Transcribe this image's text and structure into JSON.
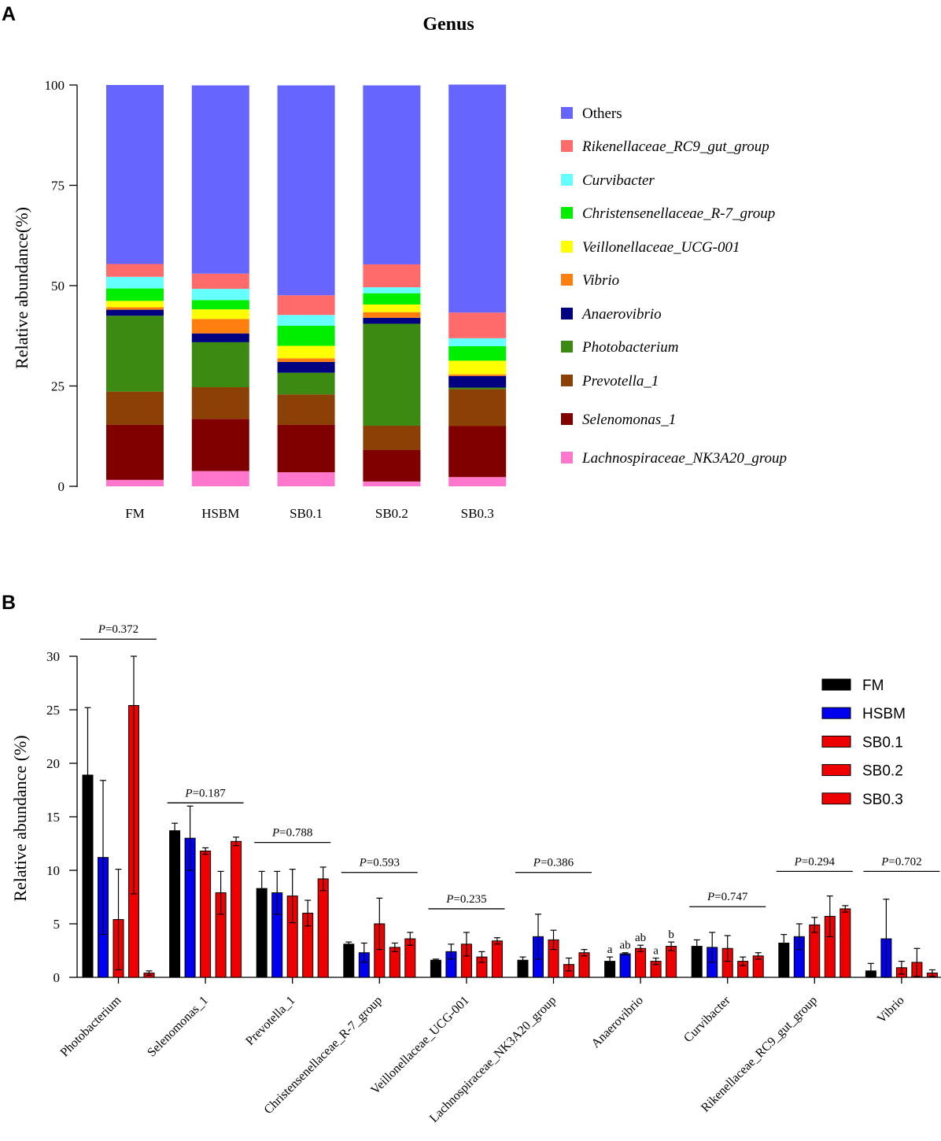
{
  "panel_labels": {
    "a": "A",
    "b": "B"
  },
  "chart_data": [
    {
      "type": "bar",
      "stacked": true,
      "title": "Genus",
      "ylabel": "Relative abundance(%)",
      "xlabel": "",
      "ylim": [
        0,
        100
      ],
      "yticks": [
        "0",
        "25",
        "50",
        "75",
        "100"
      ],
      "categories": [
        "FM",
        "HSBM",
        "SB0.1",
        "SB0.2",
        "SB0.3"
      ],
      "series": [
        {
          "name": "Lachnospiraceae_NK3A20_group",
          "color": "#ff77cc",
          "values": [
            1.6,
            3.8,
            3.5,
            1.2,
            2.3
          ]
        },
        {
          "name": "Selenomonas_1",
          "color": "#800000",
          "values": [
            13.7,
            13.0,
            11.8,
            7.9,
            12.7
          ]
        },
        {
          "name": "Prevotella_1",
          "color": "#8b4106",
          "values": [
            8.3,
            7.9,
            7.6,
            6.0,
            9.2
          ]
        },
        {
          "name": "Photobacterium",
          "color": "#3d8a12",
          "values": [
            18.9,
            11.2,
            5.4,
            25.4,
            0.4
          ]
        },
        {
          "name": "Anaerovibrio",
          "color": "#000080",
          "values": [
            1.5,
            2.2,
            2.7,
            1.5,
            2.9
          ]
        },
        {
          "name": "Vibrio",
          "color": "#ff7f0e",
          "values": [
            0.6,
            3.6,
            0.9,
            1.4,
            0.4
          ]
        },
        {
          "name": "Veillonellaceae_UCG-001",
          "color": "#ffff00",
          "values": [
            1.6,
            2.4,
            3.1,
            1.9,
            3.4
          ]
        },
        {
          "name": "Christensenellaceae_R-7_group",
          "color": "#00ee00",
          "values": [
            3.1,
            2.3,
            5.0,
            2.8,
            3.6
          ]
        },
        {
          "name": "Curvibacter",
          "color": "#66ffff",
          "values": [
            2.9,
            2.8,
            2.7,
            1.5,
            2.0
          ]
        },
        {
          "name": "Rikenellaceae_RC9_gut_group",
          "color": "#ff6b6b",
          "values": [
            3.2,
            3.8,
            4.9,
            5.7,
            6.4
          ]
        },
        {
          "name": "Others",
          "color": "#6666ff",
          "values": [
            44.6,
            46.9,
            52.3,
            44.6,
            56.8
          ]
        }
      ],
      "legend_order": [
        "Others",
        "Rikenellaceae_RC9_gut_group",
        "Curvibacter",
        "Christensenellaceae_R-7_group",
        "Veillonellaceae_UCG-001",
        "Vibrio",
        "Anaerovibrio",
        "Photobacterium",
        "Prevotella_1",
        "Selenomonas_1",
        "Lachnospiraceae_NK3A20_group"
      ],
      "legend_position": "right"
    },
    {
      "type": "bar",
      "grouped": true,
      "title": "",
      "ylabel": "Relative abundance (%)",
      "xlabel": "",
      "ylim": [
        0,
        30
      ],
      "yticks": [
        "0",
        "5",
        "10",
        "15",
        "20",
        "25",
        "30"
      ],
      "categories": [
        "Photobacterium",
        "Selenomonas_1",
        "Prevotella_1",
        "Christensenellaceae_R-7_group",
        "Veillonellaceae_UCG-001",
        "Lachnospiraceae_NK3A20_group",
        "Anaerovibrio",
        "Curvibacter",
        "Rikenellaceae_RC9_gut_group",
        "Vibrio"
      ],
      "series": [
        {
          "name": "FM",
          "color": "#000000",
          "values": [
            18.9,
            13.7,
            8.3,
            3.1,
            1.6,
            1.6,
            1.5,
            2.9,
            3.2,
            0.6
          ],
          "errors": [
            6.3,
            0.7,
            1.6,
            0.2,
            0.1,
            0.3,
            0.4,
            0.6,
            0.8,
            0.7
          ]
        },
        {
          "name": "HSBM",
          "color": "#0000ee",
          "values": [
            11.2,
            13.0,
            7.9,
            2.3,
            2.4,
            3.8,
            2.2,
            2.8,
            3.8,
            3.6
          ],
          "errors": [
            7.2,
            3.0,
            2.0,
            0.9,
            0.7,
            2.1,
            0.1,
            1.4,
            1.2,
            3.7
          ]
        },
        {
          "name": "SB0.1",
          "color": "#ee0000",
          "values": [
            5.4,
            11.8,
            7.6,
            5.0,
            3.1,
            3.5,
            2.7,
            2.7,
            4.9,
            0.9
          ],
          "errors": [
            4.7,
            0.3,
            2.5,
            2.4,
            1.1,
            0.9,
            0.3,
            1.2,
            0.7,
            0.6
          ]
        },
        {
          "name": "SB0.2",
          "color": "#ee0000",
          "values": [
            25.4,
            7.9,
            6.0,
            2.8,
            1.9,
            1.2,
            1.5,
            1.5,
            5.7,
            1.4
          ],
          "errors": [
            17.6,
            2.0,
            1.2,
            0.4,
            0.5,
            0.6,
            0.3,
            0.4,
            1.9,
            1.3
          ]
        },
        {
          "name": "SB0.3",
          "color": "#ee0000",
          "values": [
            0.4,
            12.7,
            9.2,
            3.6,
            3.4,
            2.3,
            2.9,
            2.0,
            6.4,
            0.4
          ],
          "errors": [
            0.2,
            0.4,
            1.1,
            0.6,
            0.3,
            0.3,
            0.4,
            0.3,
            0.3,
            0.3
          ]
        }
      ],
      "pvalues": [
        {
          "category": "Photobacterium",
          "p_label": "P",
          "p_value": "=0.372",
          "bracket_y": 31.6
        },
        {
          "category": "Selenomonas_1",
          "p_label": "P",
          "p_value": "=0.187",
          "bracket_y": 16.3
        },
        {
          "category": "Prevotella_1",
          "p_label": "P",
          "p_value": "=0.788",
          "bracket_y": 12.6
        },
        {
          "category": "Christensenellaceae_R-7_group",
          "p_label": "P",
          "p_value": "=0.593",
          "bracket_y": 9.8
        },
        {
          "category": "Veillonellaceae_UCG-001",
          "p_label": "P",
          "p_value": "=0.235",
          "bracket_y": 6.4
        },
        {
          "category": "Lachnospiraceae_NK3A20_group",
          "p_label": "P",
          "p_value": "=0.386",
          "bracket_y": 9.8
        },
        {
          "category": "Curvibacter",
          "p_label": "P",
          "p_value": "=0.747",
          "bracket_y": 6.6
        },
        {
          "category": "Rikenellaceae_RC9_gut_group",
          "p_label": "P",
          "p_value": "=0.294",
          "bracket_y": 9.9
        },
        {
          "category": "Vibrio",
          "p_label": "P",
          "p_value": "=0.702",
          "bracket_y": 9.9
        }
      ],
      "significance_letters": {
        "category": "Anaerovibrio",
        "letters": [
          "a",
          "ab",
          "ab",
          "a",
          "b"
        ]
      },
      "legend_position": "right"
    }
  ]
}
